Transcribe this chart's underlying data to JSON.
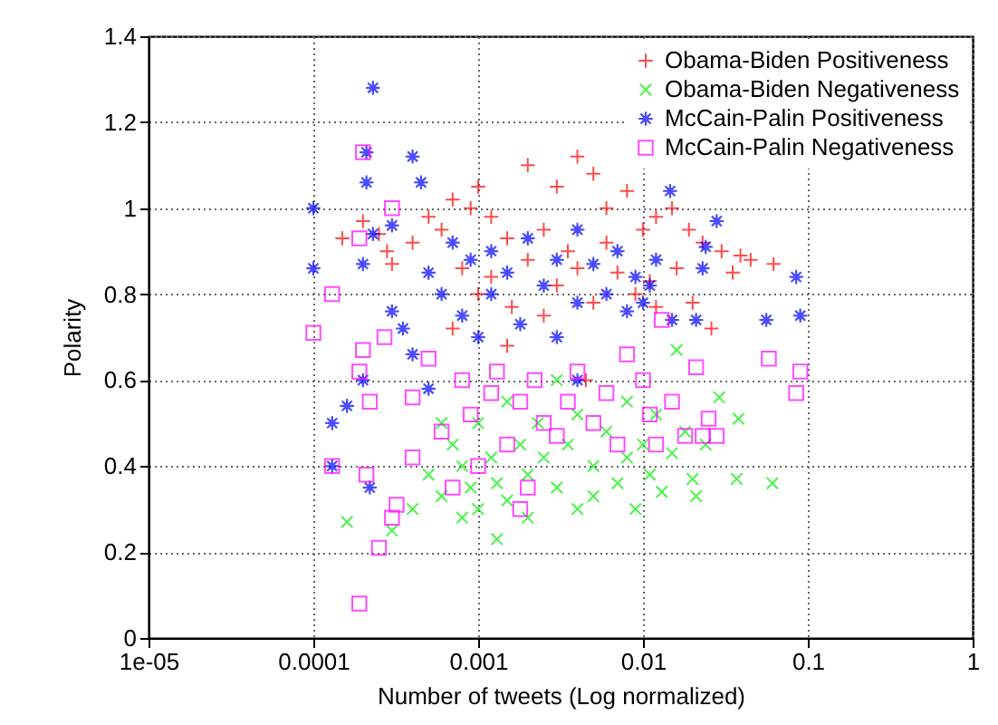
{
  "chart_data": {
    "type": "scatter",
    "xlabel": "Number of tweets (Log normalized)",
    "ylabel": "Polarity",
    "log": "x",
    "grid": true,
    "legend": "top right",
    "xlim": [
      1e-05,
      1
    ],
    "ylim": [
      0,
      1.4
    ],
    "xticks": [
      {
        "value": 1e-05,
        "label": "1e-05"
      },
      0.0001,
      0.001,
      0.01,
      0.1,
      1
    ],
    "yticks": [
      0,
      0.2,
      0.4,
      0.6,
      0.8,
      1,
      1.2,
      1.4
    ],
    "series": [
      {
        "name": "Obama-Biden Positiveness",
        "color": "#ff0000",
        "marker": "cross",
        "x": [
          0.00015,
          0.0002,
          0.00025,
          0.00028,
          0.0003,
          0.0004,
          0.0005,
          0.0006,
          0.0007,
          0.0008,
          0.0009,
          0.001,
          0.001,
          0.0012,
          0.0012,
          0.0015,
          0.0016,
          0.002,
          0.002,
          0.0025,
          0.0025,
          0.003,
          0.003,
          0.0035,
          0.004,
          0.004,
          0.0045,
          0.005,
          0.005,
          0.006,
          0.006,
          0.007,
          0.008,
          0.009,
          0.01,
          0.011,
          0.012,
          0.012,
          0.015,
          0.016,
          0.019,
          0.02,
          0.023,
          0.026,
          0.03,
          0.035,
          0.039,
          0.045,
          0.062,
          0.0015,
          0.0007
        ],
        "values": [
          0.93,
          0.97,
          0.94,
          0.9,
          0.87,
          0.92,
          0.98,
          0.95,
          1.02,
          0.86,
          1.0,
          1.05,
          0.8,
          0.98,
          0.84,
          0.93,
          0.77,
          1.1,
          0.88,
          0.95,
          0.75,
          1.05,
          0.82,
          0.9,
          1.12,
          0.86,
          0.6,
          1.08,
          0.78,
          1.0,
          0.92,
          0.85,
          1.04,
          0.8,
          0.95,
          0.83,
          0.98,
          0.77,
          1.0,
          0.86,
          0.95,
          0.78,
          0.92,
          0.72,
          0.9,
          0.85,
          0.89,
          0.88,
          0.87,
          0.68,
          0.72
        ]
      },
      {
        "name": "Obama-Biden Negativeness",
        "color": "#00ee00",
        "marker": "x",
        "x": [
          0.00016,
          0.0003,
          0.0004,
          0.0005,
          0.0006,
          0.0007,
          0.0008,
          0.0008,
          0.0009,
          0.001,
          0.001,
          0.0012,
          0.0013,
          0.0015,
          0.0015,
          0.0018,
          0.002,
          0.002,
          0.0023,
          0.0025,
          0.003,
          0.003,
          0.0035,
          0.004,
          0.004,
          0.005,
          0.005,
          0.006,
          0.007,
          0.008,
          0.008,
          0.009,
          0.01,
          0.011,
          0.012,
          0.013,
          0.015,
          0.016,
          0.018,
          0.02,
          0.021,
          0.024,
          0.029,
          0.038,
          0.037,
          0.061,
          0.0006,
          0.0013
        ],
        "values": [
          0.27,
          0.25,
          0.3,
          0.38,
          0.33,
          0.45,
          0.28,
          0.4,
          0.35,
          0.5,
          0.3,
          0.42,
          0.36,
          0.55,
          0.32,
          0.45,
          0.38,
          0.28,
          0.5,
          0.42,
          0.35,
          0.6,
          0.45,
          0.3,
          0.52,
          0.4,
          0.33,
          0.48,
          0.36,
          0.55,
          0.42,
          0.3,
          0.45,
          0.38,
          0.52,
          0.34,
          0.43,
          0.67,
          0.48,
          0.37,
          0.33,
          0.45,
          0.56,
          0.51,
          0.37,
          0.36,
          0.5,
          0.23
        ]
      },
      {
        "name": "McCain-Palin Positiveness",
        "color": "#0000ff",
        "marker": "star",
        "x": [
          0.0001,
          0.0001,
          0.00013,
          0.00013,
          0.00016,
          0.0002,
          0.00021,
          0.00021,
          0.00023,
          0.00023,
          0.00022,
          0.0002,
          0.0003,
          0.0003,
          0.00035,
          0.0004,
          0.00045,
          0.0004,
          0.0005,
          0.0005,
          0.0006,
          0.0007,
          0.0008,
          0.0009,
          0.001,
          0.0012,
          0.0012,
          0.0015,
          0.0018,
          0.002,
          0.0025,
          0.003,
          0.003,
          0.004,
          0.004,
          0.005,
          0.006,
          0.007,
          0.008,
          0.009,
          0.01,
          0.011,
          0.012,
          0.0146,
          0.015,
          0.021,
          0.023,
          0.024,
          0.028,
          0.056,
          0.085,
          0.09,
          0.004
        ],
        "values": [
          1.0,
          0.86,
          0.5,
          0.4,
          0.54,
          0.87,
          1.06,
          1.13,
          1.28,
          0.94,
          0.35,
          0.6,
          0.96,
          0.76,
          0.72,
          1.12,
          1.06,
          0.66,
          0.85,
          0.58,
          0.8,
          0.92,
          0.75,
          0.88,
          0.7,
          0.9,
          0.8,
          0.85,
          0.73,
          0.93,
          0.82,
          0.88,
          0.7,
          0.95,
          0.78,
          0.87,
          0.8,
          0.9,
          0.76,
          0.84,
          0.78,
          0.82,
          0.88,
          1.04,
          0.74,
          0.74,
          0.86,
          0.91,
          0.97,
          0.74,
          0.84,
          0.75,
          0.6
        ]
      },
      {
        "name": "McCain-Palin Negativeness",
        "color": "#ff00ff",
        "marker": "square",
        "x": [
          0.0001,
          0.00013,
          0.00013,
          0.00019,
          0.00019,
          0.0002,
          0.0002,
          0.00019,
          0.00021,
          0.00022,
          0.00025,
          0.00027,
          0.0003,
          0.0003,
          0.00032,
          0.0004,
          0.0004,
          0.0005,
          0.0006,
          0.0007,
          0.0008,
          0.0009,
          0.001,
          0.0012,
          0.0013,
          0.0015,
          0.0018,
          0.002,
          0.0022,
          0.0025,
          0.003,
          0.0035,
          0.004,
          0.005,
          0.006,
          0.007,
          0.008,
          0.01,
          0.011,
          0.012,
          0.013,
          0.015,
          0.018,
          0.021,
          0.023,
          0.025,
          0.028,
          0.058,
          0.09,
          0.085,
          0.0018
        ],
        "values": [
          0.71,
          0.8,
          0.4,
          0.93,
          0.08,
          1.13,
          0.67,
          0.62,
          0.38,
          0.55,
          0.21,
          0.7,
          1.0,
          0.28,
          0.31,
          0.42,
          0.56,
          0.65,
          0.48,
          0.35,
          0.6,
          0.52,
          0.4,
          0.57,
          0.62,
          0.45,
          0.55,
          0.35,
          0.6,
          0.5,
          0.47,
          0.55,
          0.62,
          0.5,
          0.57,
          0.45,
          0.66,
          0.6,
          0.52,
          0.45,
          0.74,
          0.55,
          0.47,
          0.63,
          0.47,
          0.51,
          0.47,
          0.65,
          0.62,
          0.57,
          0.3
        ]
      }
    ]
  }
}
